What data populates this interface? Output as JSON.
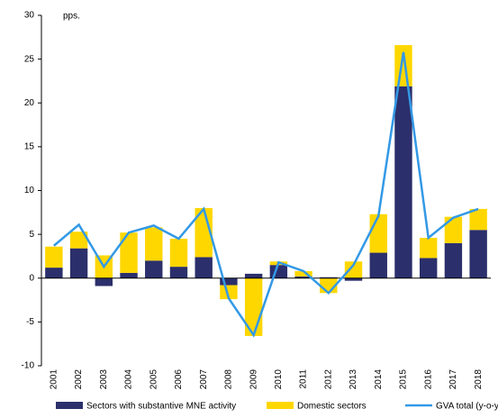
{
  "chart_data": {
    "type": "bar_line",
    "annotation": "pps.",
    "categories": [
      "2001",
      "2002",
      "2003",
      "2004",
      "2005",
      "2006",
      "2007",
      "2008",
      "2009",
      "2010",
      "2011",
      "2012",
      "2013",
      "2014",
      "2015",
      "2016",
      "2017",
      "2018"
    ],
    "series": [
      {
        "name": "Sectors with substantive MNE activity",
        "color": "#2b2f6b",
        "kind": "bar",
        "values": [
          1.2,
          3.4,
          -0.9,
          0.6,
          2.0,
          1.3,
          2.4,
          -0.8,
          0.5,
          1.5,
          0.2,
          0.1,
          -0.3,
          2.9,
          21.9,
          2.3,
          4.0,
          5.5
        ]
      },
      {
        "name": "Domestic sectors",
        "color": "#ffd700",
        "kind": "bar",
        "values": [
          2.4,
          1.9,
          2.6,
          4.6,
          3.8,
          3.2,
          5.6,
          -1.6,
          -6.6,
          0.4,
          0.6,
          -1.7,
          1.9,
          4.4,
          4.7,
          2.3,
          3.0,
          2.4
        ]
      },
      {
        "name": "GVA total (y-o-y%)",
        "color": "#3399e6",
        "kind": "line",
        "values": [
          3.7,
          6.1,
          1.3,
          5.2,
          6.0,
          4.5,
          7.9,
          -2.3,
          -6.5,
          1.8,
          0.8,
          -1.7,
          1.5,
          7.1,
          25.8,
          4.6,
          6.9,
          7.9
        ]
      }
    ],
    "ylim": [
      -10,
      30
    ],
    "yticks": [
      -10,
      -5,
      0,
      5,
      10,
      15,
      20,
      25,
      30
    ],
    "grid": false
  }
}
